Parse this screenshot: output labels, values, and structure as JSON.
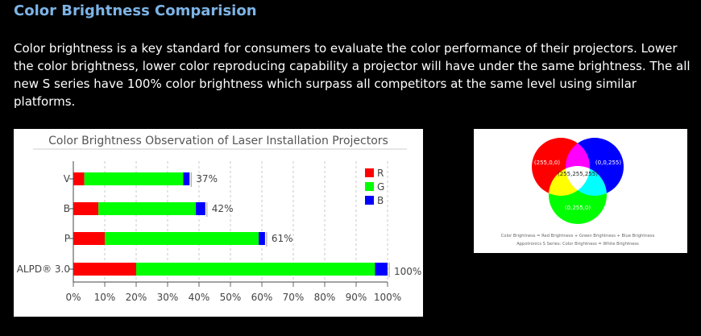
{
  "section": {
    "title": "Color Brightness Comparision",
    "description": "Color brightness is a key standard for consumers to evaluate the color performance of their projectors. Lower the color brightness, lower color reproducing capability a projector will have under the same brightness. The all new S series have 100% color brightness which surpass all competitors at the same level using similar platforms."
  },
  "chart_data": {
    "type": "bar",
    "orientation": "horizontal",
    "stacked": true,
    "title": "Color Brightness Observation of Laser Installation Projectors",
    "categories": [
      "V",
      "B",
      "P",
      "ALPD® 3.0"
    ],
    "series": [
      {
        "name": "R",
        "color": "#ff0000",
        "values": [
          3.5,
          8,
          10,
          20
        ]
      },
      {
        "name": "G",
        "color": "#00ff00",
        "values": [
          31.5,
          31,
          49,
          76
        ]
      },
      {
        "name": "B",
        "color": "#0000ff",
        "values": [
          2,
          3,
          2,
          4
        ]
      }
    ],
    "totals_labels": [
      "37%",
      "42%",
      "61%",
      "100%"
    ],
    "xlim": [
      0,
      100
    ],
    "xticks": [
      "0%",
      "10%",
      "20%",
      "30%",
      "40%",
      "50%",
      "60%",
      "70%",
      "80%",
      "90%",
      "100%"
    ],
    "legend": [
      "R",
      "G",
      "B"
    ],
    "grid": "vertical-dashed"
  },
  "rgb_diagram": {
    "circles": [
      {
        "label": "(255,0,0)",
        "color": "#ff0000"
      },
      {
        "label": "(0,0,255)",
        "color": "#0000ff"
      },
      {
        "label": "(0,255,0)",
        "color": "#00ff00"
      }
    ],
    "center_label": "(255,255,255)",
    "caption_line1": "Color Brightness = Red Brightness + Green Brightness + Blue Brightness",
    "caption_line2": "Appotronics S Series: Color Brightness = White Brightness"
  }
}
